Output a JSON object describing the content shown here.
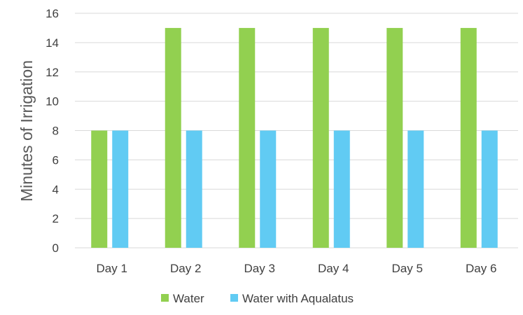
{
  "chart_data": {
    "type": "bar",
    "title": "",
    "xlabel": "",
    "ylabel": "Minutes of Irrigation",
    "ylim": [
      0,
      16
    ],
    "yticks": [
      0,
      2,
      4,
      6,
      8,
      10,
      12,
      14,
      16
    ],
    "grid": true,
    "legend_position": "bottom",
    "categories": [
      "Day 1",
      "Day 2",
      "Day 3",
      "Day 4",
      "Day 5",
      "Day 6"
    ],
    "series": [
      {
        "name": "Water",
        "color": "#92D050",
        "values": [
          8,
          15,
          15,
          15,
          15,
          15
        ]
      },
      {
        "name": "Water with Aqualatus",
        "color": "#61CBF3",
        "values": [
          8,
          8,
          8,
          8,
          8,
          8
        ]
      }
    ]
  }
}
